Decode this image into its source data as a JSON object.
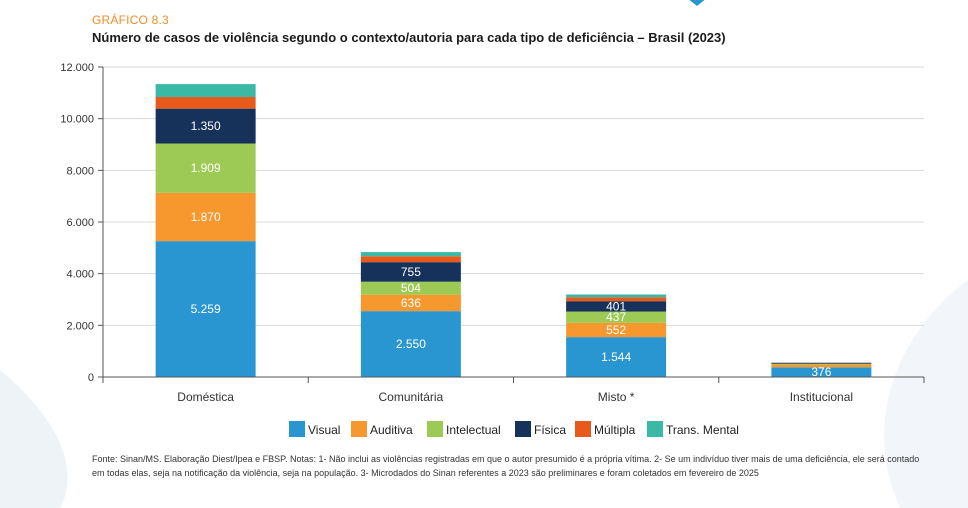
{
  "header": {
    "kicker": "GRÁFICO 8.3",
    "title": "Número de casos de violência segundo o contexto/autoria para cada tipo de deficiência – Brasil (2023)"
  },
  "chart_data": {
    "type": "bar",
    "stacked": true,
    "categories": [
      "Doméstica",
      "Comunitária",
      "Misto *",
      "Institucional"
    ],
    "series": [
      {
        "name": "Visual",
        "color": "#2a96d1",
        "values": [
          5259,
          2550,
          1544,
          376
        ],
        "labels": [
          "5.259",
          "2.550",
          "1.544",
          "376"
        ]
      },
      {
        "name": "Auditiva",
        "color": "#f7982e",
        "values": [
          1870,
          636,
          552,
          110
        ],
        "labels": [
          "1.870",
          "636",
          "552",
          ""
        ]
      },
      {
        "name": "Intelectual",
        "color": "#9dca55",
        "values": [
          1909,
          504,
          437,
          20
        ],
        "labels": [
          "1.909",
          "504",
          "437",
          ""
        ]
      },
      {
        "name": "Física",
        "color": "#16325a",
        "values": [
          1350,
          755,
          401,
          30
        ],
        "labels": [
          "1.350",
          "755",
          "401",
          ""
        ]
      },
      {
        "name": "Múltipla",
        "color": "#e85a1c",
        "values": [
          450,
          230,
          150,
          15
        ],
        "labels": [
          "",
          "",
          "",
          ""
        ]
      },
      {
        "name": "Trans. Mental",
        "color": "#39b9a6",
        "values": [
          500,
          160,
          110,
          15
        ],
        "labels": [
          "",
          "",
          "",
          ""
        ]
      }
    ],
    "yticks": [
      "0",
      "2.000",
      "4.000",
      "6.000",
      "8.000",
      "10.000",
      "12.000"
    ],
    "ylim": [
      0,
      12000
    ],
    "grid": true,
    "legend": "bottom"
  },
  "footer": {
    "note": "Fonte: Sinan/MS. Elaboração Diest/Ipea e FBSP. Notas: 1- Não inclui as violências registradas em que o autor presumido é a própria vítima. 2- Se um indivíduo tiver mais de uma deficiência, ele será contado em todas elas, seja na notificação da violência, seja na população. 3- Microdados do Sinan referentes a 2023 são preliminares e foram coletados em fevereiro de 2025"
  }
}
